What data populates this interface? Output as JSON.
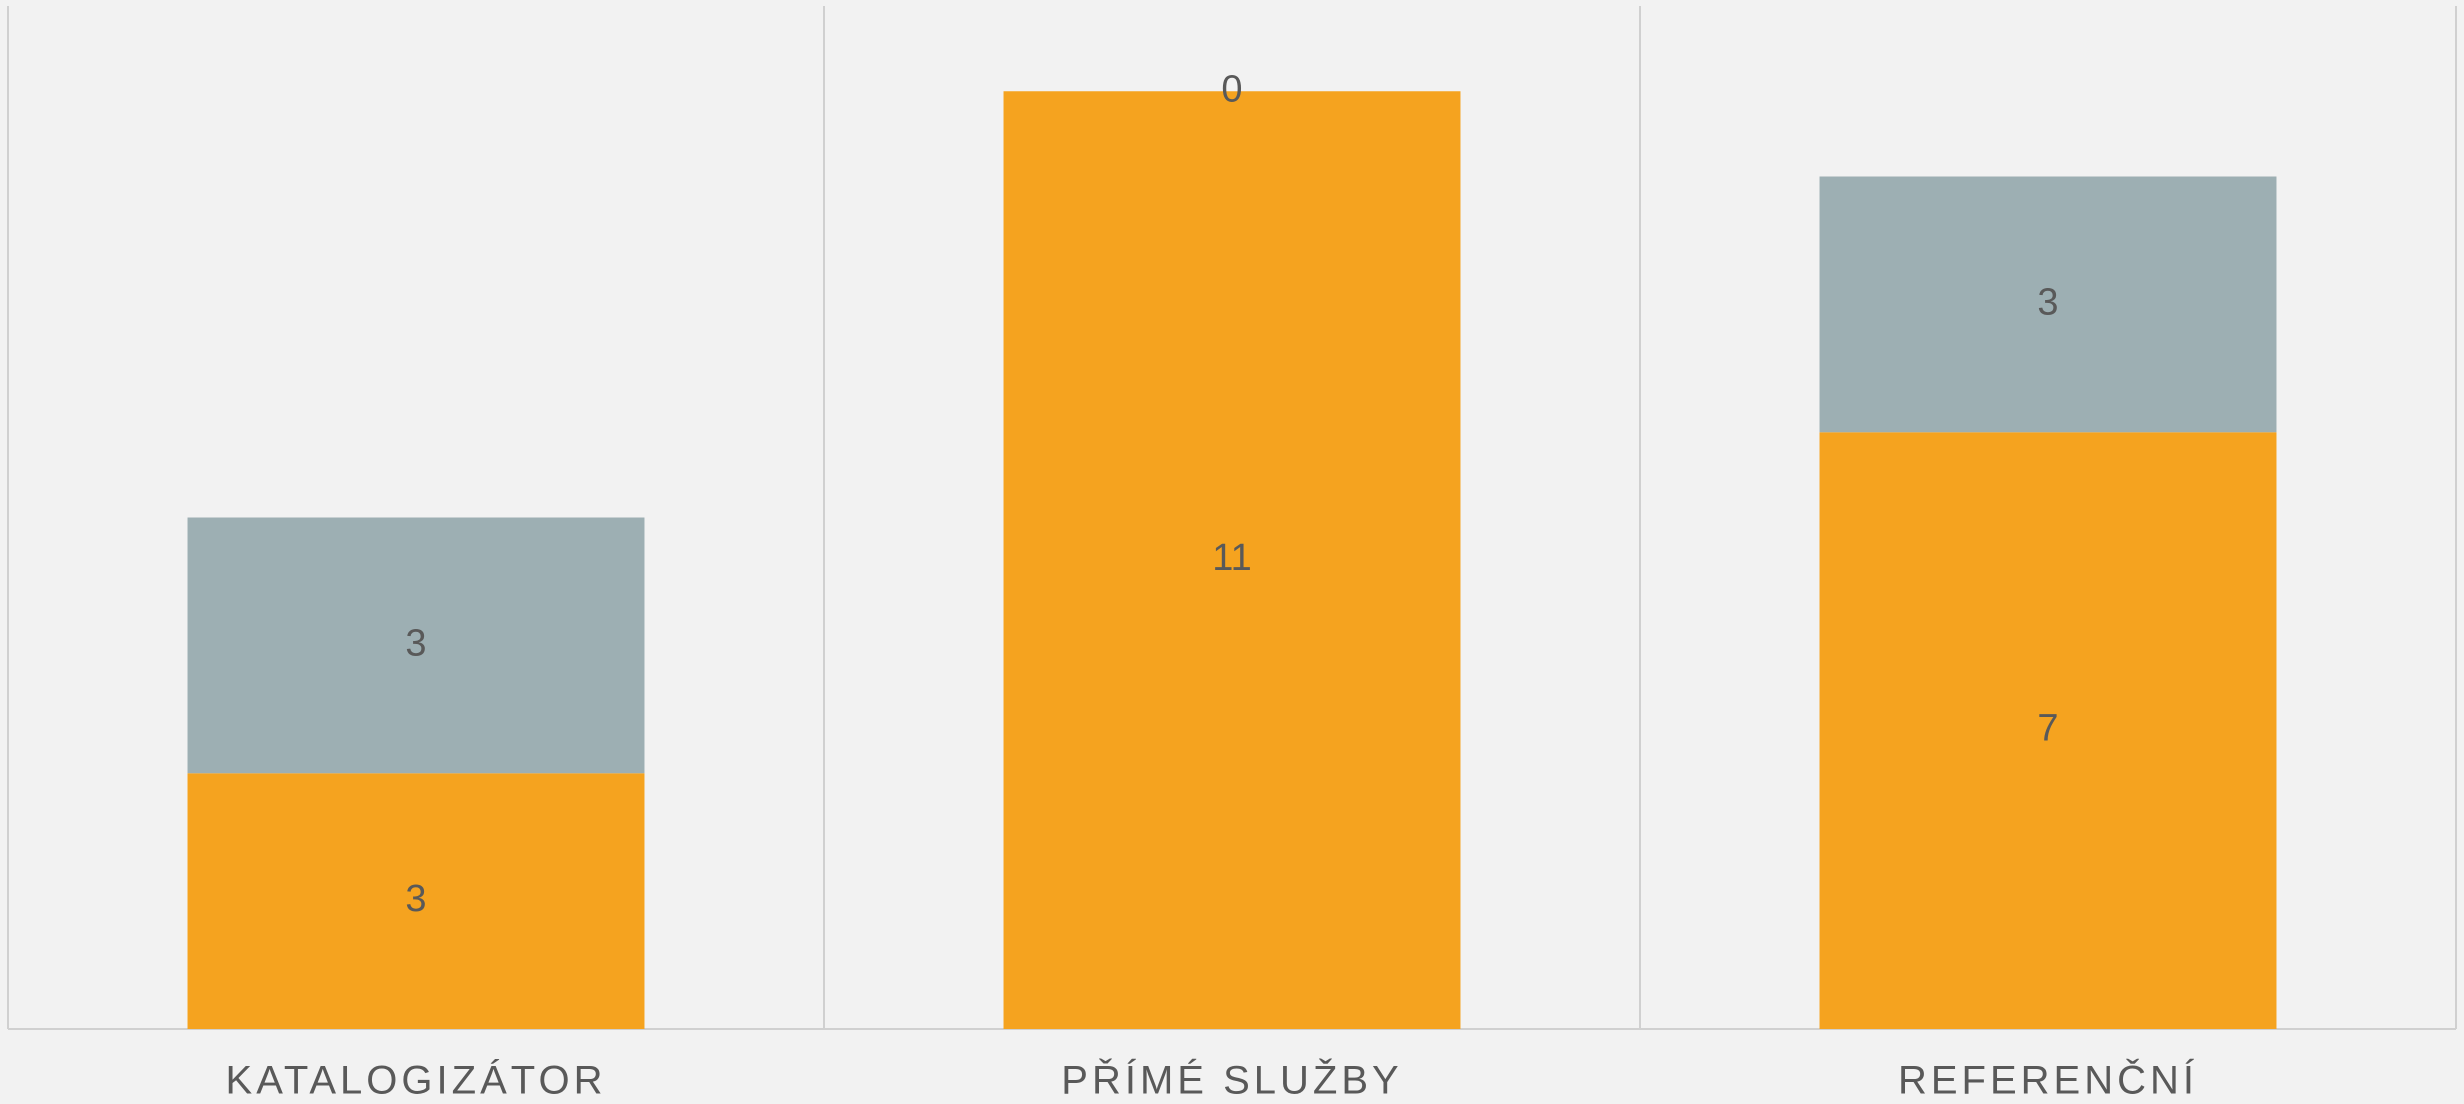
{
  "chart_data": {
    "type": "stacked-bar",
    "categories": [
      "KATALOGIZÁTOR",
      "PŘÍMÉ SLUŽBY",
      "REFERENČNÍ"
    ],
    "series": [
      {
        "color": "#f5a31f",
        "values": [
          3,
          11,
          7
        ]
      },
      {
        "color": "#9dafb3",
        "values": [
          3,
          0,
          3
        ]
      }
    ],
    "ylim": [
      0,
      12
    ]
  }
}
